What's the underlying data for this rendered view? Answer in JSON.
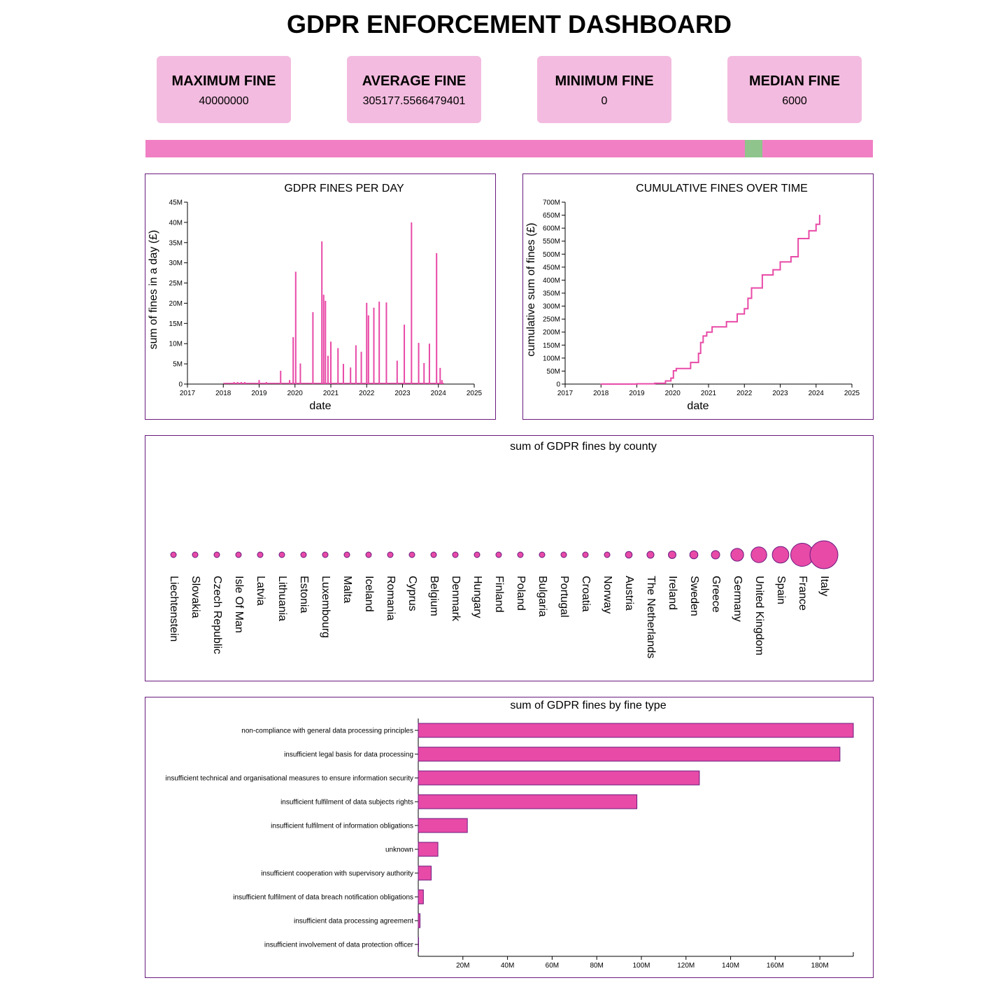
{
  "dashboard": {
    "title": "GDPR ENFORCEMENT DASHBOARD"
  },
  "kpis": [
    {
      "label": "MAXIMUM FINE",
      "value": "40000000"
    },
    {
      "label": "AVERAGE FINE",
      "value": "305177.5566479401"
    },
    {
      "label": "MINIMUM FINE",
      "value": "0"
    },
    {
      "label": "MEDIAN FINE",
      "value": "6000"
    }
  ],
  "colors": {
    "accent": "#e84aa7",
    "kpi_bg": "#f3bbdf",
    "border": "#6a1b7e",
    "slider": "#f07fc4",
    "handle": "#8fc58d"
  },
  "chart_data": [
    {
      "type": "bar",
      "title": "GDPR FINES PER DAY",
      "xlabel": "date",
      "ylabel": "sum of fines in a day (£)",
      "xlim": [
        2017,
        2025
      ],
      "ylim": [
        0,
        45000000
      ],
      "x_ticks": [
        "2017",
        "2018",
        "2019",
        "2020",
        "2021",
        "2022",
        "2023",
        "2024",
        "2025"
      ],
      "y_ticks": [
        "0",
        "5M",
        "10M",
        "15M",
        "20M",
        "25M",
        "30M",
        "35M",
        "40M",
        "45M"
      ],
      "x": [
        2018.3,
        2018.4,
        2018.5,
        2018.6,
        2019.0,
        2019.2,
        2019.6,
        2019.85,
        2019.95,
        2020.02,
        2020.15,
        2020.5,
        2020.75,
        2020.8,
        2020.85,
        2020.92,
        2021.0,
        2021.2,
        2021.35,
        2021.55,
        2021.7,
        2021.85,
        2022.0,
        2022.05,
        2022.2,
        2022.35,
        2022.55,
        2022.85,
        2023.05,
        2023.25,
        2023.45,
        2023.6,
        2023.75,
        2023.95,
        2024.05,
        2024.1
      ],
      "values": [
        500000,
        500000,
        500000,
        500000,
        1000000,
        500000,
        3300000,
        1000000,
        11600000,
        27800000,
        5100000,
        17800000,
        35300000,
        22100000,
        20600000,
        7000000,
        10500000,
        8900000,
        5000000,
        4100000,
        9600000,
        8000000,
        20100000,
        17000000,
        18900000,
        20400000,
        20200000,
        5800000,
        14700000,
        40000000,
        10200000,
        5200000,
        10000000,
        32400000,
        4000000,
        1000000
      ]
    },
    {
      "type": "line",
      "title": "CUMULATIVE FINES OVER TIME",
      "xlabel": "date",
      "ylabel": "cumulative sum of fines (£)",
      "xlim": [
        2017,
        2025
      ],
      "ylim": [
        0,
        700000000
      ],
      "x_ticks": [
        "2017",
        "2018",
        "2019",
        "2020",
        "2021",
        "2022",
        "2023",
        "2024",
        "2025"
      ],
      "y_ticks": [
        "0",
        "50M",
        "100M",
        "150M",
        "200M",
        "250M",
        "300M",
        "350M",
        "400M",
        "450M",
        "500M",
        "550M",
        "600M",
        "650M",
        "700M"
      ],
      "x": [
        2018.0,
        2019.0,
        2019.5,
        2019.8,
        2019.95,
        2020.02,
        2020.1,
        2020.5,
        2020.72,
        2020.78,
        2020.85,
        2020.95,
        2021.1,
        2021.5,
        2021.8,
        2022.0,
        2022.1,
        2022.2,
        2022.5,
        2022.8,
        2023.0,
        2023.3,
        2023.5,
        2023.8,
        2024.0,
        2024.1
      ],
      "values": [
        0,
        1000000,
        3000000,
        12000000,
        23000000,
        51000000,
        60000000,
        83000000,
        118000000,
        160000000,
        185000000,
        200000000,
        220000000,
        240000000,
        270000000,
        290000000,
        330000000,
        370000000,
        420000000,
        440000000,
        470000000,
        490000000,
        560000000,
        590000000,
        615000000,
        650000000
      ]
    },
    {
      "type": "scatter",
      "title": "sum of GDPR fines by county",
      "categories": [
        "Liechtenstein",
        "Slovakia",
        "Czech Republic",
        "Isle Of Man",
        "Latvia",
        "Lithuania",
        "Estonia",
        "Luxembourg",
        "Malta",
        "Iceland",
        "Romania",
        "Cyprus",
        "Belgium",
        "Denmark",
        "Hungary",
        "Finland",
        "Poland",
        "Bulgaria",
        "Portugal",
        "Croatia",
        "Norway",
        "Austria",
        "The Netherlands",
        "Ireland",
        "Sweden",
        "Greece",
        "Germany",
        "United Kingdom",
        "Spain",
        "France",
        "Italy"
      ],
      "values": [
        5000,
        50000,
        80000,
        100000,
        150000,
        200000,
        250000,
        300000,
        400000,
        500000,
        600000,
        800000,
        1000000,
        1500000,
        2000000,
        2500000,
        3000000,
        3500000,
        4000000,
        5000000,
        7000000,
        11000000,
        12000000,
        14000000,
        16000000,
        17000000,
        40000000,
        60000000,
        67000000,
        130000000,
        190000000
      ]
    },
    {
      "type": "bar",
      "orientation": "horizontal",
      "title": "sum of GDPR fines by fine type",
      "categories": [
        "non-compliance with general data processing principles",
        "insufficient legal basis for data processing",
        "insufficient technical and organisational measures to ensure information security",
        "insufficient fulfilment of data subjects rights",
        "insufficient fulfilment of information obligations",
        "unknown",
        "insufficient cooperation with supervisory authority",
        "insufficient fulfilment of data breach notification obligations",
        "insufficient data processing agreement",
        "insufficient involvement of data protection officer"
      ],
      "values": [
        195000000,
        189000000,
        126000000,
        98000000,
        22000000,
        8800000,
        5800000,
        2300000,
        800000,
        100000
      ],
      "xlim": [
        0,
        195000000
      ],
      "x_ticks": [
        "20M",
        "40M",
        "60M",
        "80M",
        "100M",
        "120M",
        "140M",
        "160M",
        "180M"
      ]
    }
  ]
}
